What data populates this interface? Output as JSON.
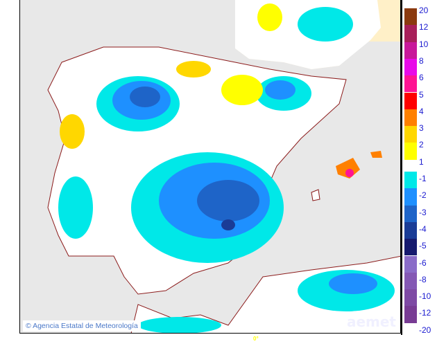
{
  "map": {
    "credit": "Agencia Estatal de Meteorología",
    "logo": "aemet",
    "longitude_label": "0°",
    "colors": {
      "sea": "#e8e8e8",
      "land": "#ffffff",
      "france": "#fff0c8",
      "borders": "#8b1a1a"
    }
  },
  "legend": {
    "positive": [
      {
        "from": 12,
        "to": 20,
        "color": "#8b3a0f"
      },
      {
        "from": 10,
        "to": 12,
        "color": "#a8205a"
      },
      {
        "from": 8,
        "to": 10,
        "color": "#c8189a"
      },
      {
        "from": 6,
        "to": 8,
        "color": "#e80ae8"
      },
      {
        "from": 5,
        "to": 6,
        "color": "#ff1493"
      },
      {
        "from": 4,
        "to": 5,
        "color": "#ff0000"
      },
      {
        "from": 3,
        "to": 4,
        "color": "#ff8000"
      },
      {
        "from": 2,
        "to": 3,
        "color": "#ffd700"
      },
      {
        "from": 1,
        "to": 2,
        "color": "#ffff00"
      }
    ],
    "negative": [
      {
        "from": -1,
        "to": -2,
        "color": "#00e8e8"
      },
      {
        "from": -2,
        "to": -3,
        "color": "#1e90ff"
      },
      {
        "from": -3,
        "to": -4,
        "color": "#1e64c8"
      },
      {
        "from": -4,
        "to": -5,
        "color": "#1a3c96"
      },
      {
        "from": -5,
        "to": -6,
        "color": "#161a6e"
      },
      {
        "from": -6,
        "to": -8,
        "color": "#8a6cc8"
      },
      {
        "from": -8,
        "to": -10,
        "color": "#8458b4"
      },
      {
        "from": -10,
        "to": -12,
        "color": "#7e4aa4"
      },
      {
        "from": -12,
        "to": -20,
        "color": "#783c94"
      }
    ],
    "labels": [
      "20",
      "12",
      "10",
      "8",
      "6",
      "5",
      "4",
      "3",
      "2",
      "1",
      "-1",
      "-2",
      "-3",
      "-4",
      "-5",
      "-6",
      "-8",
      "-10",
      "-12",
      "-20"
    ]
  }
}
